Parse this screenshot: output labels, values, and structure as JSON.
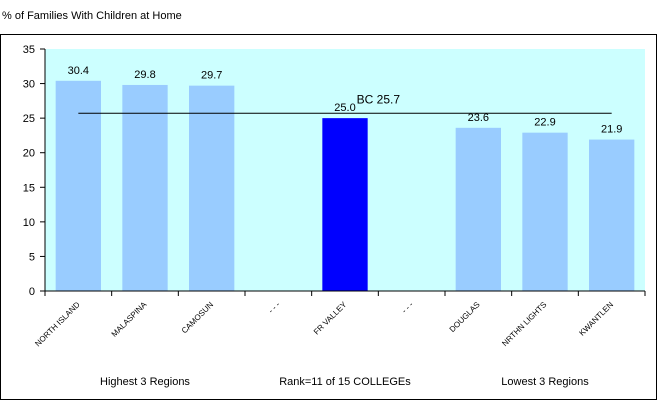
{
  "page": {
    "title": "% of Families With Children at Home"
  },
  "chart_data": {
    "type": "bar",
    "title": "% of Families With Children at Home",
    "categories": [
      "NORTH ISLAND",
      "MALASPINA",
      "CAMOSUN",
      "- - -",
      "FR VALLEY",
      "- - -",
      "DOUGLAS",
      "NRTHN LIGHTS",
      "KWANTLEN"
    ],
    "values": [
      30.4,
      29.8,
      29.7,
      null,
      25.0,
      null,
      23.6,
      22.9,
      21.9
    ],
    "value_labels": [
      "30.4",
      "29.8",
      "29.7",
      "",
      "25.0",
      "",
      "23.6",
      "22.9",
      "21.9"
    ],
    "highlight_index": 4,
    "ylim": [
      0,
      35
    ],
    "yticks": [
      0,
      5,
      10,
      15,
      20,
      25,
      30,
      35
    ],
    "reference_line": {
      "label": "BC 25.7",
      "value": 25.7
    },
    "group_labels": [
      "Highest 3 Regions",
      "Rank=11 of 15 COLLEGEs",
      "Lowest 3 Regions"
    ],
    "colors": {
      "plot_bg": "#ccffff",
      "bar": "#99ccff",
      "highlight": "#0000ff",
      "line": "#000000"
    },
    "grid": false,
    "legend": "none"
  }
}
